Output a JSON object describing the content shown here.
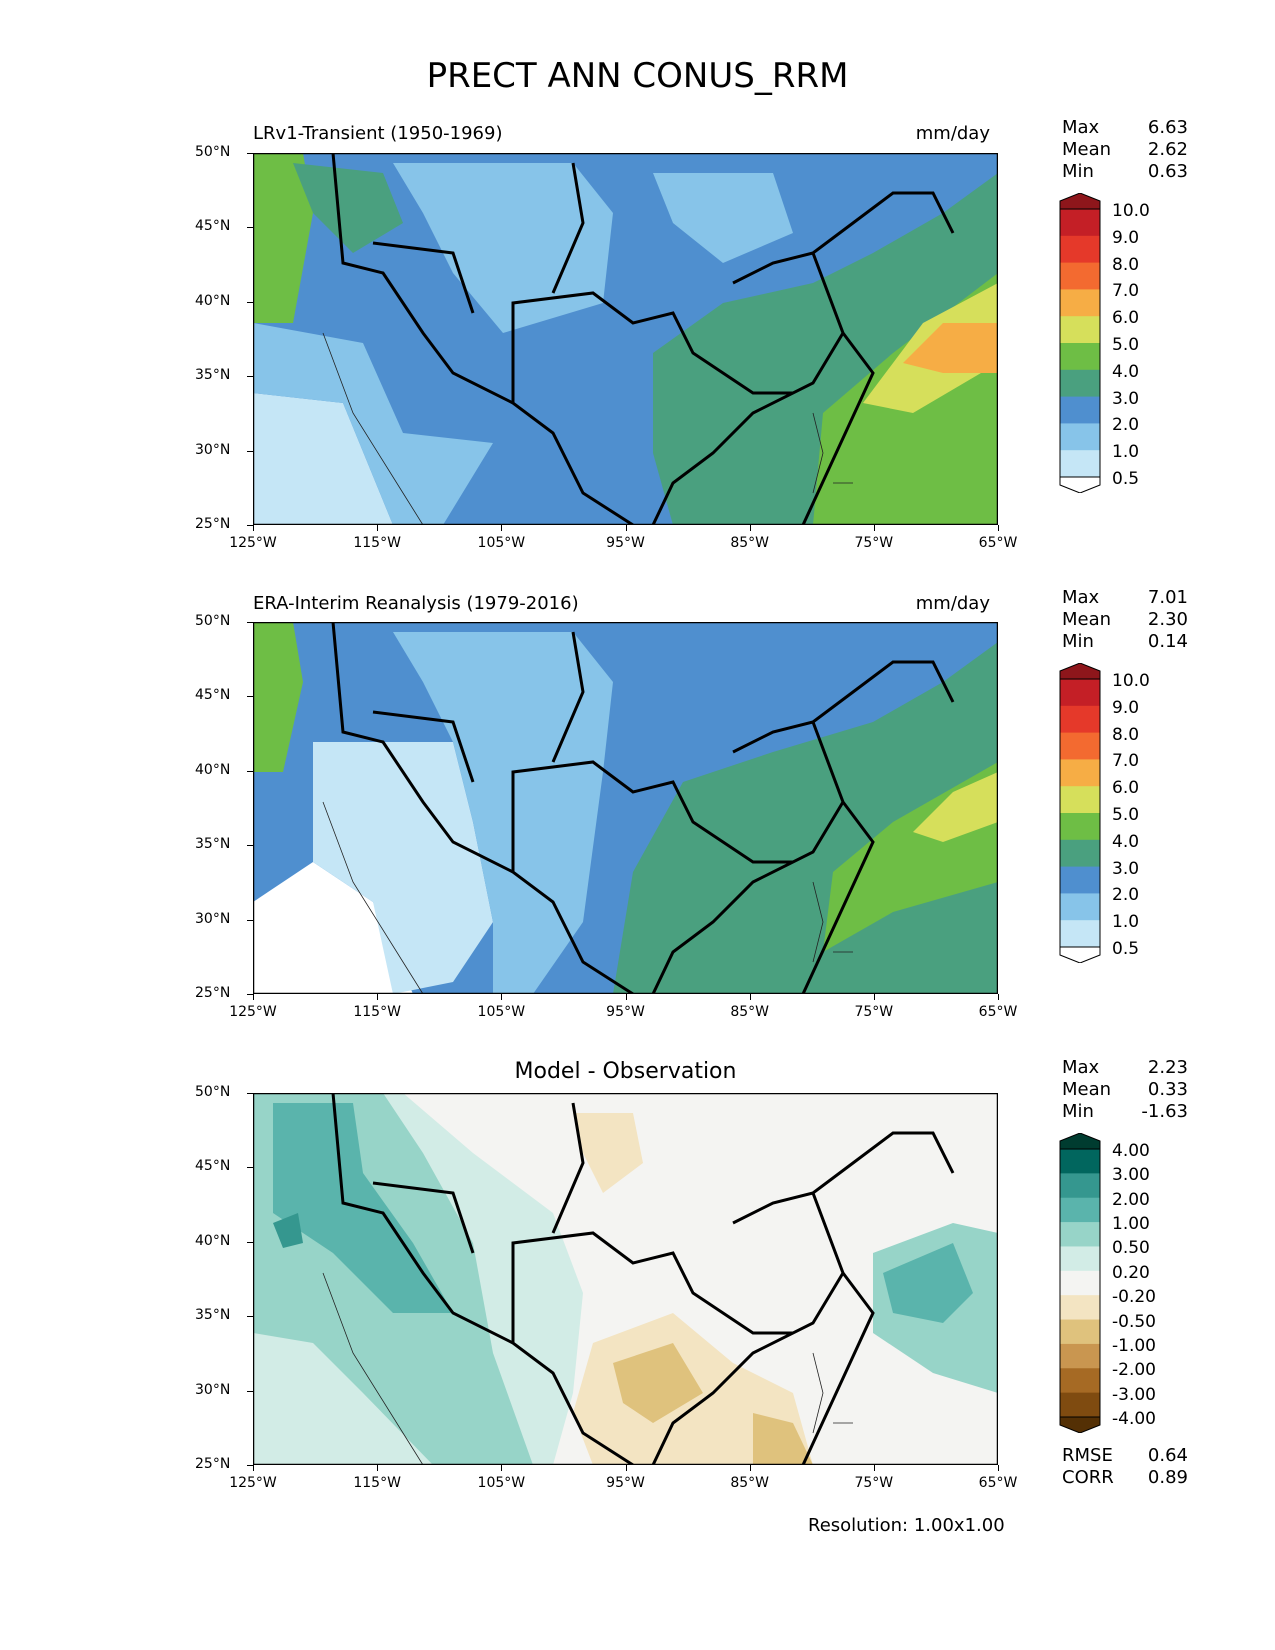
{
  "figure": {
    "title": "PRECT ANN CONUS_RRM",
    "resolution": "Resolution: 1.00x1.00"
  },
  "axes": {
    "lat_ticks": [
      "50°N",
      "45°N",
      "40°N",
      "35°N",
      "30°N",
      "25°N"
    ],
    "lon_ticks": [
      "125°W",
      "115°W",
      "105°W",
      "95°W",
      "85°W",
      "75°W",
      "65°W"
    ]
  },
  "panels": [
    {
      "title": "LRv1-Transient (1950-1969)",
      "units": "mm/day",
      "stats": {
        "max_label": "Max",
        "max": "6.63",
        "mean_label": "Mean",
        "mean": "2.62",
        "min_label": "Min",
        "min": "0.63"
      },
      "colorbar": {
        "labels": [
          "10.0",
          "9.0",
          "8.0",
          "7.0",
          "6.0",
          "5.0",
          "4.0",
          "3.0",
          "2.0",
          "1.0",
          "0.5"
        ],
        "colors": [
          "#8e161b",
          "#c41f26",
          "#e5392a",
          "#f36a30",
          "#f6ad45",
          "#d6df5b",
          "#6ebe45",
          "#4aa07f",
          "#4f8fcf",
          "#87c4e9",
          "#c5e6f6",
          "#ffffff"
        ]
      }
    },
    {
      "title": "ERA-Interim Reanalysis (1979-2016)",
      "units": "mm/day",
      "stats": {
        "max_label": "Max",
        "max": "7.01",
        "mean_label": "Mean",
        "mean": "2.30",
        "min_label": "Min",
        "min": "0.14"
      },
      "colorbar": {
        "labels": [
          "10.0",
          "9.0",
          "8.0",
          "7.0",
          "6.0",
          "5.0",
          "4.0",
          "3.0",
          "2.0",
          "1.0",
          "0.5"
        ],
        "colors": [
          "#8e161b",
          "#c41f26",
          "#e5392a",
          "#f36a30",
          "#f6ad45",
          "#d6df5b",
          "#6ebe45",
          "#4aa07f",
          "#4f8fcf",
          "#87c4e9",
          "#c5e6f6",
          "#ffffff"
        ]
      }
    },
    {
      "title": "Model - Observation",
      "stats": {
        "max_label": "Max",
        "max": "2.23",
        "mean_label": "Mean",
        "mean": "0.33",
        "min_label": "Min",
        "min": "-1.63",
        "rmse_label": "RMSE",
        "rmse": "0.64",
        "corr_label": "CORR",
        "corr": "0.89"
      },
      "colorbar": {
        "labels": [
          "4.00",
          "3.00",
          "2.00",
          "1.00",
          "0.50",
          "0.20",
          "-0.20",
          "-0.50",
          "-1.00",
          "-2.00",
          "-3.00",
          "-4.00"
        ],
        "colors": [
          "#003c30",
          "#01665e",
          "#35978f",
          "#5ab4ac",
          "#97d4c8",
          "#d2ece6",
          "#f4f4f2",
          "#f3e4c2",
          "#dfc27d",
          "#c99650",
          "#a66a24",
          "#7f4b10",
          "#543005"
        ]
      }
    }
  ],
  "chart_data": [
    {
      "type": "heatmap",
      "title": "LRv1-Transient (1950-1969)",
      "units": "mm/day",
      "xlim": [
        -125,
        -65
      ],
      "ylim": [
        25,
        50
      ],
      "field_description_values": {
        "max": 6.63,
        "mean": 2.62,
        "min": 0.63
      },
      "levels": [
        0.5,
        1.0,
        2.0,
        3.0,
        4.0,
        5.0,
        6.0,
        7.0,
        8.0,
        9.0,
        10.0
      ]
    },
    {
      "type": "heatmap",
      "title": "ERA-Interim Reanalysis (1979-2016)",
      "units": "mm/day",
      "xlim": [
        -125,
        -65
      ],
      "ylim": [
        25,
        50
      ],
      "field_description_values": {
        "max": 7.01,
        "mean": 2.3,
        "min": 0.14
      },
      "levels": [
        0.5,
        1.0,
        2.0,
        3.0,
        4.0,
        5.0,
        6.0,
        7.0,
        8.0,
        9.0,
        10.0
      ]
    },
    {
      "type": "heatmap",
      "title": "Model - Observation",
      "xlim": [
        -125,
        -65
      ],
      "ylim": [
        25,
        50
      ],
      "field_description_values": {
        "max": 2.23,
        "mean": 0.33,
        "min": -1.63,
        "rmse": 0.64,
        "corr": 0.89
      },
      "levels": [
        -4.0,
        -3.0,
        -2.0,
        -1.0,
        -0.5,
        -0.2,
        0.2,
        0.5,
        1.0,
        2.0,
        3.0,
        4.0
      ]
    }
  ]
}
